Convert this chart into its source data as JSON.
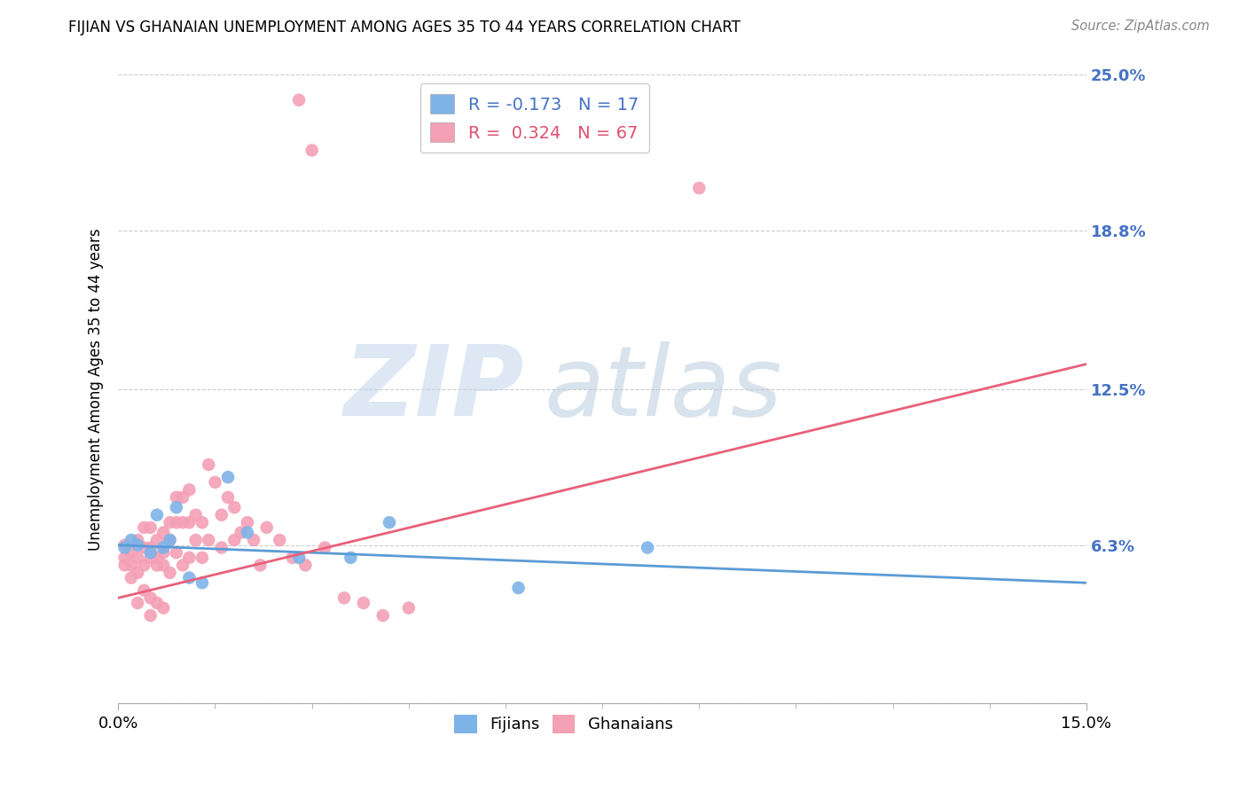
{
  "title": "FIJIAN VS GHANAIAN UNEMPLOYMENT AMONG AGES 35 TO 44 YEARS CORRELATION CHART",
  "source": "Source: ZipAtlas.com",
  "ylabel": "Unemployment Among Ages 35 to 44 years",
  "xlim": [
    0.0,
    0.15
  ],
  "ylim": [
    0.0,
    0.25
  ],
  "xtick_positions": [
    0.0,
    0.15
  ],
  "xticklabels": [
    "0.0%",
    "15.0%"
  ],
  "ytick_positions": [
    0.0,
    0.063,
    0.125,
    0.188,
    0.25
  ],
  "ytick_labels": [
    "",
    "6.3%",
    "12.5%",
    "18.8%",
    "25.0%"
  ],
  "fijian_color": "#7EB3E8",
  "ghanaian_color": "#F4A0B5",
  "fijian_line_color": "#5B9BD5",
  "ghanaian_line_color": "#E8607A",
  "R_fijian": -0.173,
  "N_fijian": 17,
  "R_ghanaian": 0.324,
  "N_ghanaian": 67,
  "fijian_line_x": [
    0.0,
    0.15
  ],
  "fijian_line_y": [
    0.063,
    0.048
  ],
  "ghanaian_line_x": [
    0.0,
    0.15
  ],
  "ghanaian_line_y": [
    0.042,
    0.135
  ],
  "fijians_x": [
    0.001,
    0.002,
    0.003,
    0.005,
    0.006,
    0.007,
    0.008,
    0.009,
    0.011,
    0.013,
    0.017,
    0.02,
    0.028,
    0.036,
    0.042,
    0.062,
    0.082
  ],
  "fijians_y": [
    0.062,
    0.065,
    0.063,
    0.06,
    0.075,
    0.062,
    0.065,
    0.078,
    0.05,
    0.048,
    0.09,
    0.068,
    0.058,
    0.058,
    0.072,
    0.046,
    0.062
  ],
  "ghanaians_x": [
    0.001,
    0.001,
    0.001,
    0.002,
    0.002,
    0.002,
    0.003,
    0.003,
    0.003,
    0.003,
    0.004,
    0.004,
    0.004,
    0.004,
    0.005,
    0.005,
    0.005,
    0.005,
    0.005,
    0.006,
    0.006,
    0.006,
    0.006,
    0.007,
    0.007,
    0.007,
    0.007,
    0.008,
    0.008,
    0.008,
    0.009,
    0.009,
    0.009,
    0.01,
    0.01,
    0.01,
    0.011,
    0.011,
    0.011,
    0.012,
    0.012,
    0.013,
    0.013,
    0.014,
    0.014,
    0.015,
    0.016,
    0.016,
    0.017,
    0.018,
    0.018,
    0.019,
    0.02,
    0.021,
    0.022,
    0.023,
    0.025,
    0.027,
    0.029,
    0.032,
    0.035,
    0.038,
    0.041,
    0.045,
    0.028,
    0.03,
    0.09
  ],
  "ghanaians_y": [
    0.063,
    0.058,
    0.055,
    0.06,
    0.055,
    0.05,
    0.065,
    0.058,
    0.052,
    0.04,
    0.062,
    0.07,
    0.055,
    0.045,
    0.062,
    0.07,
    0.058,
    0.042,
    0.035,
    0.065,
    0.058,
    0.055,
    0.04,
    0.068,
    0.06,
    0.055,
    0.038,
    0.072,
    0.065,
    0.052,
    0.082,
    0.072,
    0.06,
    0.082,
    0.072,
    0.055,
    0.085,
    0.072,
    0.058,
    0.075,
    0.065,
    0.072,
    0.058,
    0.095,
    0.065,
    0.088,
    0.075,
    0.062,
    0.082,
    0.078,
    0.065,
    0.068,
    0.072,
    0.065,
    0.055,
    0.07,
    0.065,
    0.058,
    0.055,
    0.062,
    0.042,
    0.04,
    0.035,
    0.038,
    0.24,
    0.22,
    0.205
  ]
}
